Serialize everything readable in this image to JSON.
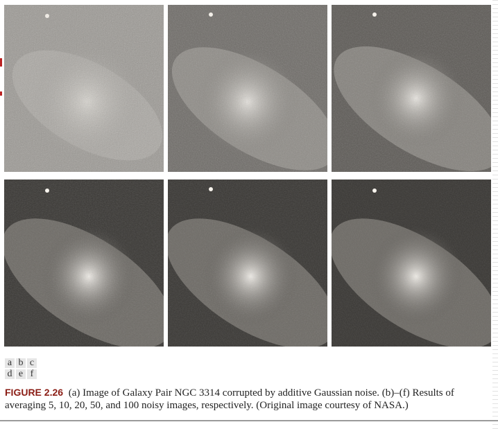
{
  "figure": {
    "panels": [
      {
        "letter": "a",
        "description": "galaxy-noisy"
      },
      {
        "letter": "b",
        "description": "galaxy-avg-5"
      },
      {
        "letter": "c",
        "description": "galaxy-avg-10"
      },
      {
        "letter": "d",
        "description": "galaxy-avg-20"
      },
      {
        "letter": "e",
        "description": "galaxy-avg-50"
      },
      {
        "letter": "f",
        "description": "galaxy-avg-100"
      }
    ],
    "labels_row1": [
      "a",
      "b",
      "c"
    ],
    "labels_row2": [
      "d",
      "e",
      "f"
    ],
    "caption_label": "FIGURE 2.26",
    "caption_text": "(a) Image of Galaxy Pair NGC 3314 corrupted by additive Gaussian noise. (b)–(f) Results of averaging 5, 10, 20, 50, and 100 noisy images, respectively. (Original image courtesy of NASA.)"
  },
  "colors": {
    "caption_label": "#8a1c14",
    "panel_background_dark": "#3a3835",
    "panel_background_light": "#9b9893"
  }
}
